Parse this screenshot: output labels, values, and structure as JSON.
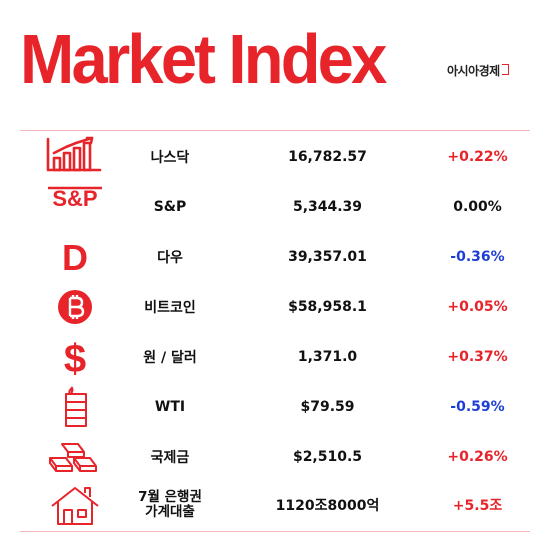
{
  "header": {
    "title": "Market Index",
    "brand": "아시아경제"
  },
  "colors": {
    "accent": "#e8242b",
    "up": "#e8242b",
    "down": "#1e3fd6",
    "flat": "#111111"
  },
  "rows": [
    {
      "icon": "bar-chart-icon",
      "name": "나스닥",
      "value": "16,782.57",
      "change": "+0.22%",
      "direction": "up"
    },
    {
      "icon": "sp-text-icon",
      "icon_text": "S&P",
      "name": "S&P",
      "value": "5,344.39",
      "change": "0.00%",
      "direction": "flat"
    },
    {
      "icon": "dow-letter-icon",
      "icon_text": "D",
      "name": "다우",
      "value": "39,357.01",
      "change": "-0.36%",
      "direction": "down"
    },
    {
      "icon": "bitcoin-icon",
      "name": "비트코인",
      "value": "$58,958.1",
      "change": "+0.05%",
      "direction": "up"
    },
    {
      "icon": "dollar-icon",
      "icon_text": "$",
      "name": "원 / 달러",
      "value": "1,371.0",
      "change": "+0.37%",
      "direction": "up"
    },
    {
      "icon": "oil-barrel-icon",
      "name": "WTI",
      "value": "$79.59",
      "change": "-0.59%",
      "direction": "down"
    },
    {
      "icon": "gold-bars-icon",
      "name": "국제금",
      "value": "$2,510.5",
      "change": "+0.26%",
      "direction": "up"
    },
    {
      "icon": "house-icon",
      "name": "7월 은행권\n가계대출",
      "value": "1120조8000억",
      "change": "+5.5조",
      "direction": "up"
    }
  ]
}
